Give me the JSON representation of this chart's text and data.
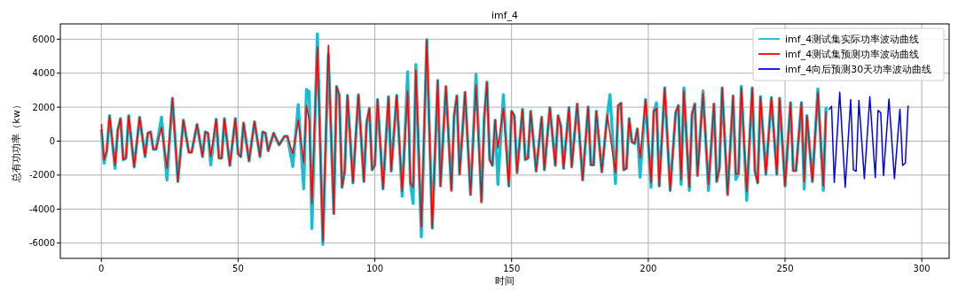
{
  "chart_data": {
    "type": "line",
    "title": "imf_4",
    "xlabel": "时间",
    "ylabel": "总有功功率（kw）",
    "xlim": [
      -15,
      310
    ],
    "ylim": [
      -6900,
      6900
    ],
    "xticks": [
      0,
      50,
      100,
      150,
      200,
      250,
      300
    ],
    "yticks": [
      -6000,
      -4000,
      -2000,
      0,
      2000,
      4000,
      6000
    ],
    "grid": true,
    "legend": "top right",
    "line_style": "solid",
    "marker": "none",
    "series": [
      {
        "name": "imf_4测试集实际功率波动曲线",
        "color": "#17becf",
        "x": [
          0,
          1,
          2,
          3,
          5,
          6,
          7,
          8,
          9,
          10,
          12,
          14,
          16,
          17,
          18,
          19,
          20,
          22,
          24,
          26,
          28,
          30,
          32,
          33,
          35,
          37,
          38,
          39,
          40,
          42,
          43,
          44,
          45,
          47,
          49,
          50,
          51,
          52,
          54,
          56,
          58,
          59,
          60,
          61,
          63,
          65,
          67,
          68,
          70,
          72,
          74,
          75,
          76,
          77,
          79,
          81,
          83,
          85,
          86,
          87,
          88,
          89,
          90,
          92,
          94,
          96,
          97,
          98,
          99,
          100,
          101,
          103,
          105,
          106,
          108,
          110,
          112,
          113,
          114,
          115,
          117,
          119,
          121,
          123,
          124,
          126,
          128,
          129,
          130,
          131,
          133,
          135,
          137,
          139,
          140,
          141,
          142,
          143,
          144,
          145,
          147,
          149,
          150,
          151,
          152,
          154,
          155,
          156,
          157,
          159,
          161,
          162,
          164,
          166,
          167,
          168,
          169,
          171,
          172,
          174,
          176,
          178,
          179,
          180,
          181,
          183,
          185,
          186,
          188,
          189,
          190,
          191,
          192,
          193,
          194,
          195,
          196,
          197,
          199,
          201,
          202,
          203,
          204,
          206,
          208,
          210,
          211,
          212,
          213,
          215,
          216,
          217,
          218,
          220,
          222,
          224,
          225,
          226,
          227,
          229,
          231,
          232,
          233,
          234,
          236,
          238,
          239,
          240,
          241,
          243,
          245,
          247,
          248,
          250,
          252,
          253,
          254,
          256,
          257,
          258,
          260,
          262,
          264,
          265
        ],
        "values": [
          700,
          -1300,
          -570,
          1500,
          -1600,
          640,
          1330,
          -1090,
          -1000,
          1500,
          -1520,
          1410,
          -910,
          470,
          550,
          -480,
          -480,
          1410,
          -2290,
          2530,
          -2380,
          1240,
          -660,
          -660,
          980,
          -910,
          550,
          470,
          -1400,
          1290,
          -1000,
          -1000,
          1330,
          -1430,
          1330,
          -740,
          -910,
          1070,
          -1170,
          1150,
          -910,
          550,
          470,
          -570,
          470,
          -220,
          290,
          290,
          -1500,
          2150,
          -2800,
          3050,
          2900,
          -5140,
          6320,
          -6080,
          5100,
          -4270,
          3220,
          2700,
          -2720,
          -1770,
          2700,
          -2460,
          2740,
          -2380,
          1070,
          1930,
          -1690,
          -1430,
          2450,
          -2810,
          2620,
          -1770,
          2700,
          -3240,
          4080,
          -2460,
          -3670,
          4510,
          -5640,
          5980,
          -5120,
          3570,
          -2640,
          3220,
          -2900,
          1500,
          2670,
          -1950,
          2880,
          -3150,
          3930,
          -3580,
          1330,
          3480,
          -1090,
          -1430,
          1240,
          -2550,
          2740,
          -2640,
          1760,
          1500,
          -1860,
          1880,
          -1090,
          -1000,
          1760,
          -1770,
          1410,
          -1690,
          1980,
          -1430,
          1500,
          900,
          -1600,
          1980,
          -1520,
          2190,
          -2290,
          2020,
          -1400,
          -1400,
          1760,
          -1810,
          1530,
          2740,
          -2500,
          2100,
          2240,
          -1690,
          -1600,
          1330,
          -50,
          -140,
          720,
          -2120,
          2450,
          -2720,
          1760,
          2250,
          -2640,
          3140,
          -2900,
          1670,
          2100,
          -2550,
          3140,
          -2900,
          1590,
          2190,
          -2030,
          2960,
          -2900,
          2190,
          -2380,
          -1600,
          3140,
          -3150,
          2670,
          -2260,
          -1900,
          3230,
          -3480,
          3140,
          -1770,
          -2460,
          2620,
          -1950,
          2570,
          -1950,
          2530,
          -2640,
          2270,
          -1740,
          -1740,
          2270,
          -2820,
          1500,
          -2380,
          3070,
          -2900,
          2020
        ]
      },
      {
        "name": "imf_4测试集预测功率波动曲线",
        "color": "#ff0000",
        "x": [
          0,
          1,
          2,
          3,
          5,
          6,
          7,
          8,
          9,
          10,
          12,
          14,
          16,
          17,
          18,
          19,
          20,
          22,
          24,
          26,
          28,
          30,
          32,
          33,
          35,
          37,
          38,
          39,
          40,
          42,
          43,
          44,
          45,
          47,
          49,
          50,
          51,
          52,
          54,
          56,
          58,
          59,
          60,
          61,
          63,
          65,
          67,
          68,
          70,
          72,
          74,
          75,
          76,
          77,
          79,
          81,
          83,
          85,
          86,
          87,
          88,
          89,
          90,
          92,
          94,
          96,
          97,
          98,
          99,
          100,
          101,
          103,
          105,
          106,
          108,
          110,
          112,
          113,
          114,
          115,
          117,
          119,
          121,
          123,
          124,
          126,
          128,
          129,
          130,
          131,
          133,
          135,
          137,
          139,
          140,
          141,
          142,
          143,
          144,
          145,
          147,
          149,
          150,
          151,
          152,
          154,
          155,
          156,
          157,
          159,
          161,
          162,
          164,
          166,
          167,
          168,
          169,
          171,
          172,
          174,
          176,
          178,
          179,
          180,
          181,
          183,
          185,
          188,
          189,
          190,
          191,
          192,
          193,
          194,
          195,
          196,
          197,
          199,
          201,
          202,
          203,
          204,
          206,
          208,
          210,
          211,
          212,
          213,
          215,
          216,
          217,
          218,
          220,
          222,
          224,
          225,
          226,
          227,
          229,
          231,
          232,
          233,
          234,
          236,
          238,
          239,
          240,
          241,
          243,
          245,
          247,
          248,
          250,
          252,
          253,
          254,
          256,
          257,
          258,
          260,
          262,
          264,
          265
        ],
        "values": [
          1000,
          -1100,
          -570,
          1500,
          -1430,
          640,
          1330,
          -1090,
          -1000,
          1500,
          -1520,
          1410,
          -910,
          470,
          550,
          -480,
          -480,
          810,
          -1600,
          2530,
          -2380,
          1240,
          -660,
          -660,
          980,
          -910,
          550,
          470,
          -910,
          1290,
          -1000,
          -1000,
          1330,
          -1430,
          1330,
          -740,
          -910,
          1070,
          -1170,
          1150,
          -910,
          550,
          470,
          -570,
          470,
          -220,
          290,
          290,
          -740,
          1240,
          -1260,
          2100,
          1240,
          -3670,
          5550,
          -5910,
          5640,
          -4270,
          3220,
          2700,
          -2720,
          -1770,
          2700,
          -2460,
          2740,
          -2380,
          1070,
          1930,
          -1690,
          -1430,
          2450,
          -2810,
          2620,
          -1770,
          2700,
          -2980,
          2960,
          -2460,
          -2720,
          4170,
          -5050,
          5980,
          -5120,
          3570,
          -2640,
          3220,
          -2900,
          1500,
          2670,
          -1950,
          2880,
          -3150,
          3310,
          -3580,
          1330,
          3480,
          -1090,
          -1430,
          1240,
          -400,
          1930,
          -2640,
          1760,
          1500,
          -1860,
          1880,
          -1090,
          -1000,
          1760,
          -1770,
          1410,
          -1690,
          1980,
          -1430,
          1500,
          900,
          -1600,
          1980,
          -1520,
          2190,
          -2290,
          2020,
          -1400,
          -1400,
          1760,
          -1810,
          1530,
          -1860,
          2100,
          2240,
          -1690,
          -1600,
          1330,
          -50,
          -140,
          720,
          -1000,
          2450,
          -2460,
          1760,
          1930,
          -2640,
          3140,
          -2900,
          1670,
          2100,
          -2290,
          2960,
          -2720,
          1590,
          2190,
          -2030,
          2790,
          -2550,
          2190,
          -2380,
          -1600,
          3140,
          -3150,
          2670,
          -1950,
          -1900,
          3140,
          -2980,
          3140,
          -1770,
          -2460,
          2620,
          -1950,
          2570,
          -1950,
          2530,
          -2640,
          2270,
          -1740,
          -1740,
          2270,
          -2380,
          1500,
          -2380,
          2880,
          -2640,
          1760
        ]
      },
      {
        "name": "imf_4向后预测30天功率波动曲线",
        "color": "#0000ff",
        "x": [
          266,
          267,
          268,
          270,
          272,
          274,
          275,
          276,
          277,
          279,
          281,
          283,
          284,
          285,
          286,
          288,
          290,
          292,
          293,
          294,
          295
        ],
        "values": [
          1840,
          2050,
          -2430,
          2880,
          -2720,
          2450,
          -1690,
          -1770,
          2390,
          -2210,
          2620,
          -2150,
          1810,
          1670,
          -2030,
          2480,
          -2210,
          1880,
          -1430,
          -1290,
          2100
        ]
      }
    ]
  }
}
